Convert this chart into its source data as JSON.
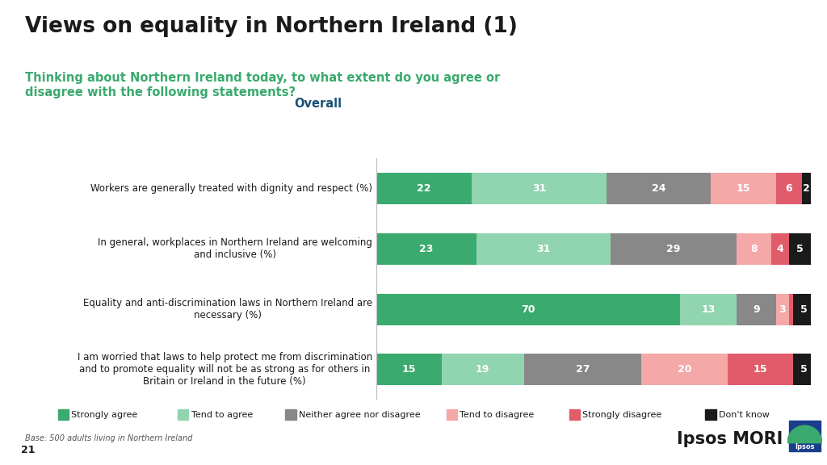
{
  "title": "Views on equality in Northern Ireland (1)",
  "subtitle_teal": "Thinking about Northern Ireland today, to what extent do you agree or\ndisagree with the following statements?",
  "subtitle_blue": "Overall",
  "categories": [
    "Workers are generally treated with dignity and respect (%)",
    "In general, workplaces in Northern Ireland are welcoming\nand inclusive (%)",
    "Equality and anti-discrimination laws in Northern Ireland are\nnecessary (%)",
    "I am worried that laws to help protect me from discrimination\nand to promote equality will not be as strong as for others in\nBritain or Ireland in the future (%)"
  ],
  "series_names": [
    "Strongly agree",
    "Tend to agree",
    "Neither agree nor disagree",
    "Tend to disagree",
    "Strongly disagree",
    "Don't know"
  ],
  "series_values": [
    [
      22,
      23,
      70,
      15
    ],
    [
      31,
      31,
      13,
      19
    ],
    [
      24,
      29,
      9,
      27
    ],
    [
      15,
      8,
      3,
      20
    ],
    [
      6,
      4,
      1,
      15
    ],
    [
      2,
      5,
      5,
      5
    ]
  ],
  "colors": [
    "#3aaa6e",
    "#91d4b0",
    "#888888",
    "#f4a8a8",
    "#e05c6a",
    "#1a1a1a"
  ],
  "base_note": "Base: 500 adults living in Northern Ireland",
  "page_number": "21",
  "background_color": "#ffffff",
  "title_color": "#1a1a1a",
  "subtitle_teal_color": "#3aaa6e",
  "subtitle_blue_color": "#1a5276",
  "bar_height": 0.52
}
